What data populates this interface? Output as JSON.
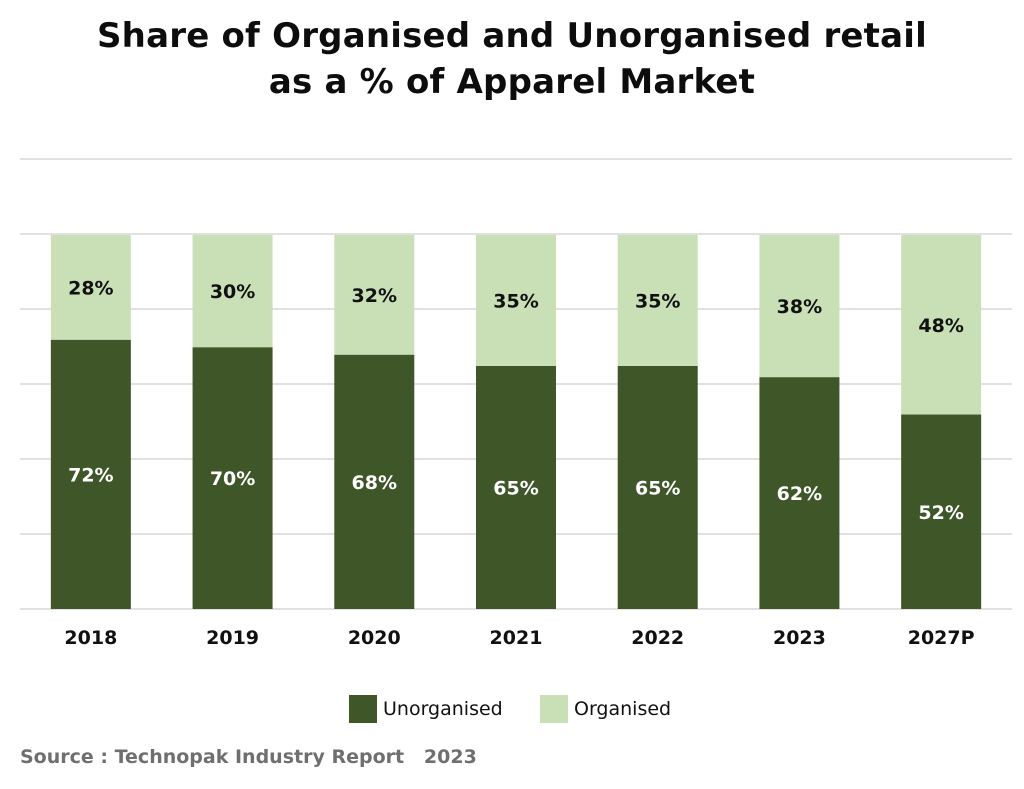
{
  "chart_data": {
    "type": "bar",
    "stacked": true,
    "title_line1": "Share of Organised and Unorganised retail",
    "title_line2": "as a % of Apparel Market",
    "categories": [
      "2018",
      "2019",
      "2020",
      "2021",
      "2022",
      "2023",
      "2027P"
    ],
    "series": [
      {
        "name": "Unorganised",
        "values": [
          72,
          70,
          68,
          65,
          65,
          62,
          52
        ],
        "labels": [
          "72%",
          "70%",
          "68%",
          "65%",
          "65%",
          "62%",
          "52%"
        ],
        "color": "#3f5629",
        "label_color": "#ffffff"
      },
      {
        "name": "Organised",
        "values": [
          28,
          30,
          32,
          35,
          35,
          38,
          48
        ],
        "labels": [
          "28%",
          "30%",
          "32%",
          "35%",
          "35%",
          "38%",
          "48%"
        ],
        "color": "#c9dfb6",
        "label_color": "#111111"
      }
    ],
    "ylim": [
      0,
      100
    ],
    "grid": true,
    "legend_position": "bottom"
  },
  "source_text": "Source : Technopak Industry Report   2023",
  "colors": {
    "gridline": "#cfcfcf",
    "axis_label": "#111111"
  }
}
